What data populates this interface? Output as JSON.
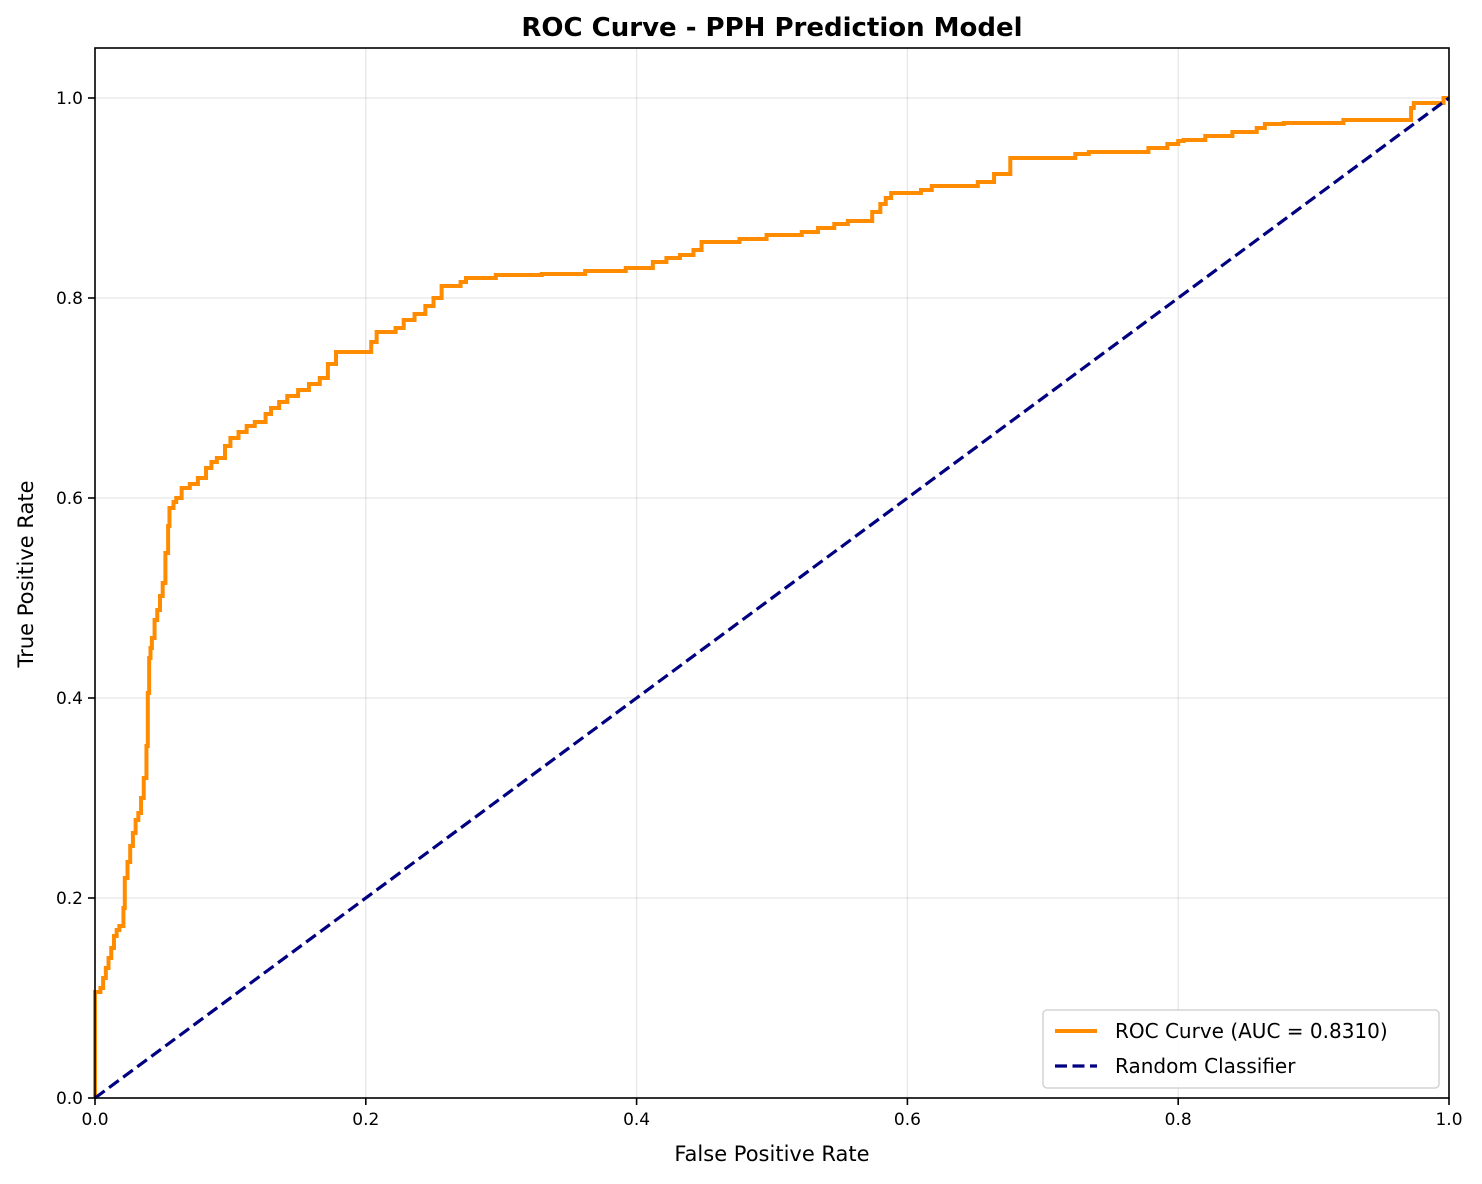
{
  "chart_data": {
    "type": "line",
    "title": "ROC Curve - PPH Prediction Model",
    "xlabel": "False Positive Rate",
    "ylabel": "True Positive Rate",
    "xlim": [
      0.0,
      1.0
    ],
    "ylim": [
      0.0,
      1.05
    ],
    "xticks": [
      0.0,
      0.2,
      0.4,
      0.6,
      0.8,
      1.0
    ],
    "xtick_labels": [
      "0.0",
      "0.2",
      "0.4",
      "0.6",
      "0.8",
      "1.0"
    ],
    "yticks": [
      0.0,
      0.2,
      0.4,
      0.6,
      0.8,
      1.0
    ],
    "ytick_labels": [
      "0.0",
      "0.2",
      "0.4",
      "0.6",
      "0.8",
      "1.0"
    ],
    "grid": true,
    "legend_position": "lower-right",
    "series": [
      {
        "name": "ROC Curve (AUC = 0.8310)",
        "color": "#ff8c00",
        "style": "solid",
        "x": [
          0.0,
          0.0,
          0.004,
          0.006,
          0.008,
          0.01,
          0.012,
          0.014,
          0.016,
          0.018,
          0.02,
          0.021,
          0.022,
          0.024,
          0.026,
          0.028,
          0.03,
          0.032,
          0.034,
          0.036,
          0.038,
          0.039,
          0.04,
          0.041,
          0.042,
          0.044,
          0.046,
          0.048,
          0.05,
          0.052,
          0.054,
          0.055,
          0.056,
          0.058,
          0.06,
          0.064,
          0.07,
          0.076,
          0.082,
          0.086,
          0.09,
          0.096,
          0.1,
          0.106,
          0.112,
          0.118,
          0.126,
          0.13,
          0.136,
          0.142,
          0.15,
          0.158,
          0.166,
          0.172,
          0.178,
          0.2,
          0.204,
          0.208,
          0.222,
          0.228,
          0.236,
          0.244,
          0.25,
          0.256,
          0.27,
          0.274,
          0.296,
          0.33,
          0.362,
          0.392,
          0.412,
          0.422,
          0.432,
          0.442,
          0.448,
          0.476,
          0.496,
          0.522,
          0.534,
          0.546,
          0.556,
          0.574,
          0.58,
          0.584,
          0.588,
          0.61,
          0.618,
          0.652,
          0.664,
          0.676,
          0.724,
          0.734,
          0.778,
          0.792,
          0.8,
          0.804,
          0.82,
          0.84,
          0.858,
          0.864,
          0.878,
          0.896,
          0.922,
          0.946,
          0.972,
          0.974,
          0.996,
          1.0
        ],
        "y": [
          0.0,
          0.106,
          0.11,
          0.12,
          0.13,
          0.14,
          0.15,
          0.162,
          0.168,
          0.172,
          0.172,
          0.19,
          0.22,
          0.236,
          0.252,
          0.265,
          0.278,
          0.285,
          0.3,
          0.32,
          0.352,
          0.405,
          0.44,
          0.45,
          0.46,
          0.478,
          0.488,
          0.502,
          0.515,
          0.545,
          0.572,
          0.59,
          0.59,
          0.596,
          0.6,
          0.61,
          0.614,
          0.62,
          0.63,
          0.636,
          0.64,
          0.652,
          0.66,
          0.666,
          0.672,
          0.676,
          0.684,
          0.69,
          0.696,
          0.702,
          0.708,
          0.714,
          0.72,
          0.734,
          0.746,
          0.746,
          0.756,
          0.766,
          0.77,
          0.778,
          0.784,
          0.792,
          0.8,
          0.812,
          0.816,
          0.82,
          0.823,
          0.824,
          0.827,
          0.83,
          0.836,
          0.84,
          0.843,
          0.848,
          0.856,
          0.859,
          0.863,
          0.866,
          0.87,
          0.874,
          0.877,
          0.886,
          0.894,
          0.9,
          0.905,
          0.908,
          0.912,
          0.916,
          0.924,
          0.94,
          0.944,
          0.946,
          0.95,
          0.954,
          0.957,
          0.958,
          0.962,
          0.966,
          0.97,
          0.974,
          0.975,
          0.975,
          0.978,
          0.978,
          0.99,
          0.995,
          1.0,
          1.0
        ]
      },
      {
        "name": "Random Classifier",
        "color": "#000080",
        "style": "dashed",
        "x": [
          0.0,
          1.0
        ],
        "y": [
          0.0,
          1.0
        ]
      }
    ]
  }
}
